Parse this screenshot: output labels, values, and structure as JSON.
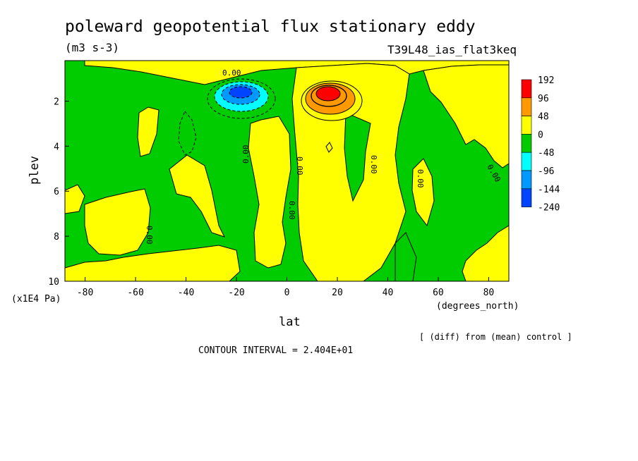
{
  "chart_data": {
    "type": "heatmap",
    "title": "poleward geopotential flux stationary eddy",
    "units": "(m3 s-3)",
    "experiment": "T39L48_ias_flat3keq",
    "xlabel": "lat",
    "x_unit_label": "(degrees_north)",
    "ylabel": "plev",
    "y_unit_label": "(x1E4 Pa)",
    "x_ticks": [
      "-80",
      "-60",
      "-40",
      "-20",
      "0",
      "20",
      "40",
      "60",
      "80"
    ],
    "y_ticks": [
      "2",
      "4",
      "6",
      "8",
      "10"
    ],
    "xlim": [
      -88,
      88
    ],
    "ylim": [
      10,
      0.2
    ],
    "footer_right": "[ (diff) from (mean) control ]",
    "contour_interval_text": "CONTOUR INTERVAL = 2.404E+01",
    "contour_label": "0.00",
    "levels": [
      {
        "label": "192",
        "color": "#ff0000"
      },
      {
        "label": "96",
        "color": "#ff9900"
      },
      {
        "label": "48",
        "color": "#ffff00"
      },
      {
        "label": "0",
        "color": "#00cc00"
      },
      {
        "label": "-48",
        "color": "#00ffff"
      },
      {
        "label": "-96",
        "color": "#0099ff"
      },
      {
        "label": "-144",
        "color": "#0044ff"
      },
      {
        "label": "-240",
        "color": ""
      }
    ],
    "features": [
      {
        "name": "positive maximum",
        "lat": 17,
        "plev": 1.6,
        "peak": 192
      },
      {
        "name": "negative minimum",
        "lat": -17,
        "plev": 1.5,
        "peak": -144
      }
    ]
  }
}
